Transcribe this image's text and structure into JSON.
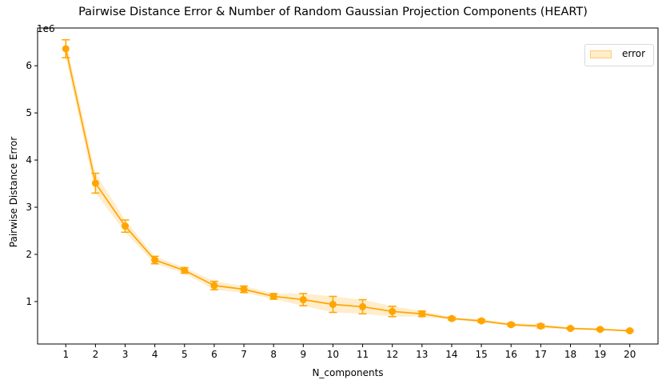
{
  "chart_data": {
    "type": "line",
    "title": "Pairwise Distance Error & Number of Random Gaussian Projection Components (HEART)",
    "xlabel": "N_components",
    "ylabel": "Pairwise Distance Error",
    "y_scale_exponent_label": "1e6",
    "x": [
      1,
      2,
      3,
      4,
      5,
      6,
      7,
      8,
      9,
      10,
      11,
      12,
      13,
      14,
      15,
      16,
      17,
      18,
      19,
      20
    ],
    "series": [
      {
        "name": "error",
        "color": "#ffa500",
        "values": [
          6360000,
          3510000,
          2600000,
          1880000,
          1660000,
          1340000,
          1260000,
          1110000,
          1040000,
          940000,
          890000,
          790000,
          740000,
          640000,
          590000,
          510000,
          480000,
          430000,
          410000,
          380000
        ],
        "error": [
          190000,
          210000,
          130000,
          80000,
          60000,
          90000,
          70000,
          60000,
          130000,
          170000,
          150000,
          110000,
          60000,
          30000,
          30000,
          30000,
          40000,
          20000,
          20000,
          20000
        ]
      }
    ],
    "x_ticks": [
      "1",
      "2",
      "3",
      "4",
      "5",
      "6",
      "7",
      "8",
      "9",
      "10",
      "11",
      "12",
      "13",
      "14",
      "15",
      "16",
      "17",
      "18",
      "19",
      "20"
    ],
    "y_ticks": [
      "1",
      "2",
      "3",
      "4",
      "5",
      "6"
    ],
    "xlim": [
      0.05,
      20.95
    ],
    "ylim": [
      100000,
      6800000
    ],
    "grid": false,
    "legend": {
      "position": "top-right",
      "entries": [
        "error"
      ]
    }
  }
}
